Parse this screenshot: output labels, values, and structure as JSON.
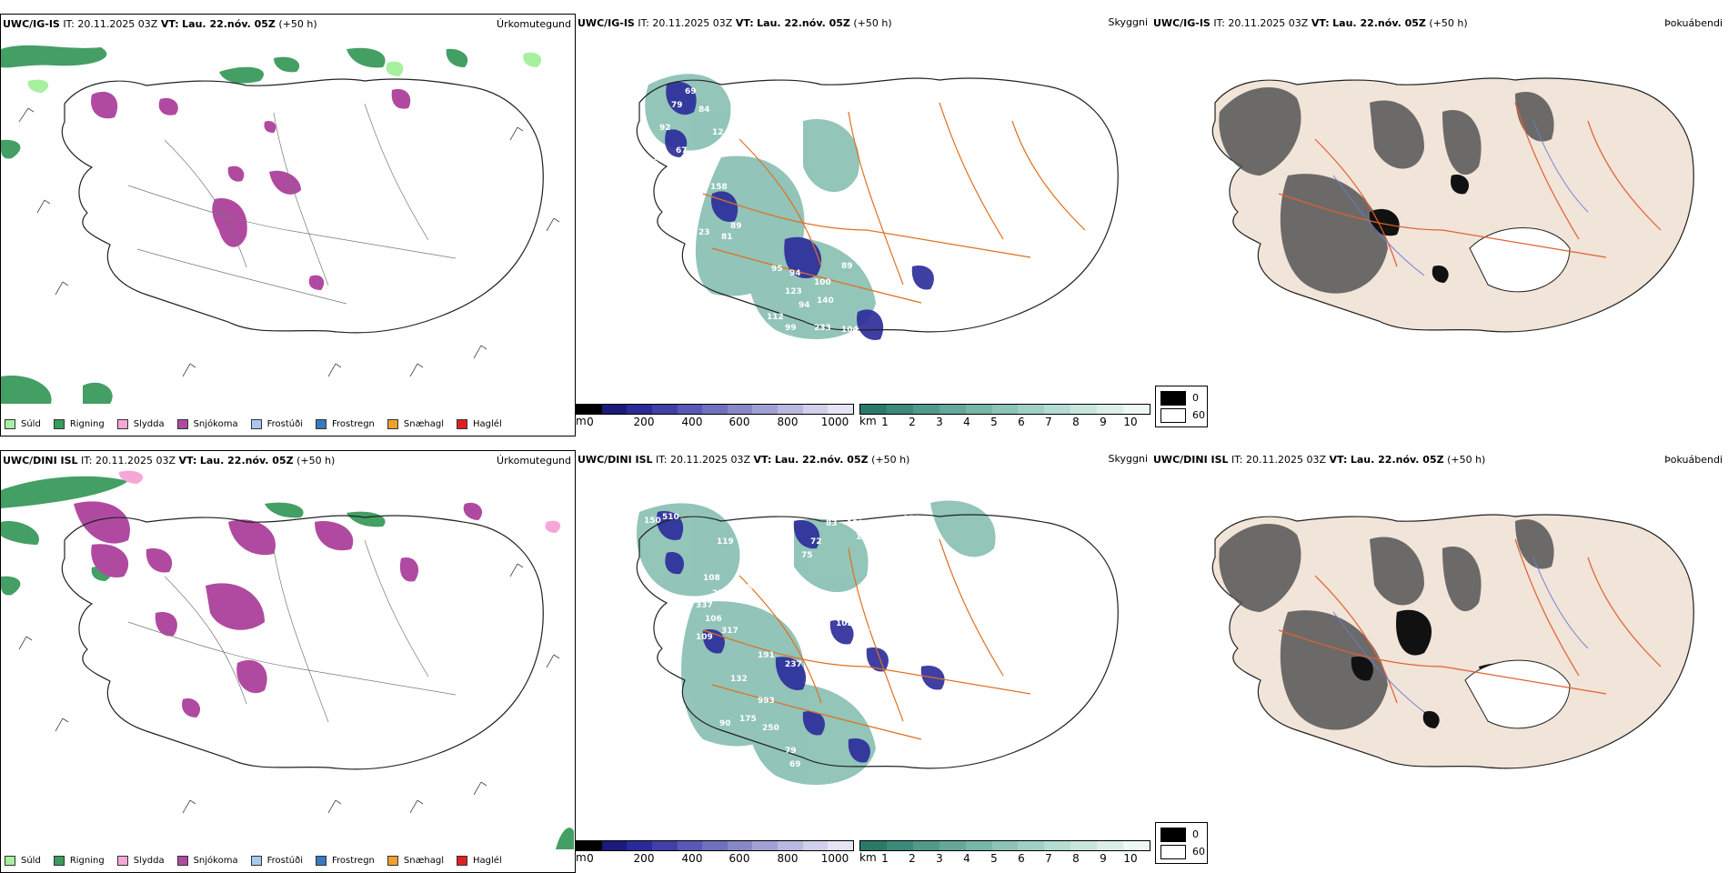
{
  "rows": [
    {
      "model": "UWC/IG-IS",
      "it_label": "IT:",
      "it_value": "20.11.2025 03Z",
      "vt_label": "VT:",
      "vt_value": "Lau. 22.nóv. 05Z",
      "lead": "(+50 h)",
      "panel_precip_type": "Úrkomutegund",
      "panel_cloud": "Skyggni",
      "panel_dew": "Þokuábendi",
      "cells_labels": [
        "69",
        "79",
        "84",
        "92",
        "12",
        "116",
        "67",
        "13",
        "120",
        "158",
        "89",
        "23",
        "81",
        "95",
        "94",
        "100",
        "89",
        "123",
        "140",
        "94",
        "112",
        "97",
        "91",
        "99",
        "233",
        "104",
        "98",
        "508",
        "225",
        "34",
        "88",
        "18",
        "244"
      ]
    },
    {
      "model": "UWC/DINI ISL",
      "it_label": "IT:",
      "it_value": "20.11.2025 03Z",
      "vt_label": "VT:",
      "vt_value": "Lau. 22.nóv. 05Z",
      "lead": "(+50 h)",
      "panel_precip_type": "Úrkomutegund",
      "panel_cloud": "Skyggni",
      "panel_dew": "Þokuábendi",
      "cells_labels": [
        "150",
        "510",
        "119",
        "108",
        "223",
        "287",
        "337",
        "106",
        "317",
        "109",
        "132",
        "191",
        "237",
        "993",
        "250",
        "175",
        "79",
        "90",
        "102",
        "108",
        "93",
        "199",
        "130",
        "293",
        "124",
        "125",
        "83",
        "122",
        "154",
        "154",
        "69",
        "72",
        "75"
      ]
    }
  ],
  "precip_legend": [
    {
      "label": "Súld",
      "color": "#a6f0a0"
    },
    {
      "label": "Rigning",
      "color": "#3a9a5c"
    },
    {
      "label": "Slydda",
      "color": "#f5a8d8"
    },
    {
      "label": "Snjókoma",
      "color": "#b04aa0"
    },
    {
      "label": "Frostúði",
      "color": "#a8c8f0"
    },
    {
      "label": "Frostregn",
      "color": "#3a78c0"
    },
    {
      "label": "Snæhagl",
      "color": "#f0a030"
    },
    {
      "label": "Haglél",
      "color": "#e02020"
    }
  ],
  "ceiling_scale": {
    "unit": "m",
    "ticks": [
      "0",
      "200",
      "400",
      "600",
      "800",
      "1000"
    ],
    "colors": [
      "#000000",
      "#1a1a7a",
      "#2a2a9a",
      "#4040a8",
      "#5858b8",
      "#7070c0",
      "#8888c8",
      "#a0a0d4",
      "#b8b8e0",
      "#d0d0ec",
      "#e4e4f4"
    ]
  },
  "visibility_scale": {
    "unit": "km",
    "ticks": [
      "1",
      "2",
      "3",
      "4",
      "5",
      "6",
      "7",
      "8",
      "9",
      "10"
    ],
    "colors": [
      "#2a7a6a",
      "#3c8a7a",
      "#509a8a",
      "#64a89a",
      "#78b6a8",
      "#8cc4b6",
      "#a0d0c4",
      "#b4dcd2",
      "#c8e6de",
      "#dceeea",
      "#eef8f4"
    ]
  },
  "dew_legend": [
    {
      "label": "0",
      "color": "#000000"
    },
    {
      "label": "60",
      "color": "#ffffff"
    }
  ]
}
